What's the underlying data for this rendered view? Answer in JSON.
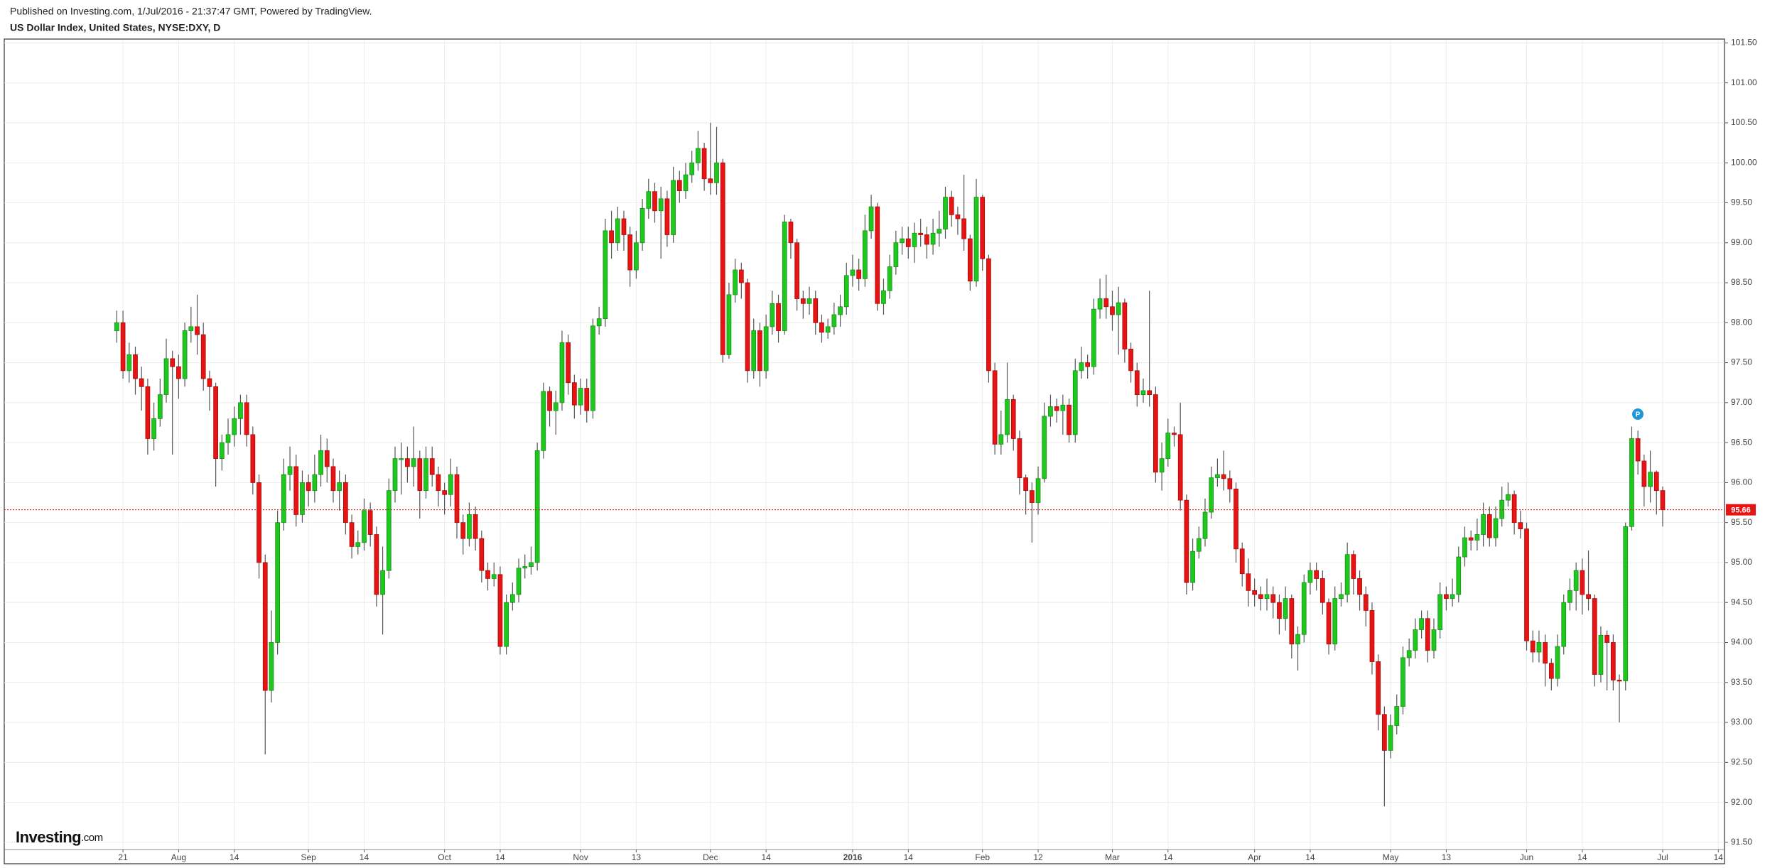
{
  "chart_data": {
    "type": "candlestick",
    "source": "Published on Investing.com, 1/Jul/2016 - 21:37:47 GMT, Powered by TradingView.",
    "title": "US Dollar Index, United States, NYSE:DXY, D",
    "logo": {
      "name": "Investing",
      "suffix": ".com"
    },
    "marker": "P",
    "up_color": "#1ec81e",
    "down_color": "#e81313",
    "last_price_color": "#e81313",
    "grid": true,
    "xlim": [
      -18.2,
      260
    ],
    "ylim": [
      91.41,
      101.53
    ],
    "yticks": [
      {
        "value": 91.5,
        "label": "91.50"
      },
      {
        "value": 92,
        "label": "92.00"
      },
      {
        "value": 92.5,
        "label": "92.50"
      },
      {
        "value": 93,
        "label": "93.00"
      },
      {
        "value": 93.5,
        "label": "93.50"
      },
      {
        "value": 94,
        "label": "94.00"
      },
      {
        "value": 94.5,
        "label": "94.50"
      },
      {
        "value": 95,
        "label": "95.00"
      },
      {
        "value": 95.5,
        "label": "95.50"
      },
      {
        "value": 96,
        "label": "96.00"
      },
      {
        "value": 96.5,
        "label": "96.50"
      },
      {
        "value": 97,
        "label": "97.00"
      },
      {
        "value": 97.5,
        "label": "97.50"
      },
      {
        "value": 98,
        "label": "98.00"
      },
      {
        "value": 98.5,
        "label": "98.50"
      },
      {
        "value": 99,
        "label": "99.00"
      },
      {
        "value": 99.5,
        "label": "99.50"
      },
      {
        "value": 100,
        "label": "100.00"
      },
      {
        "value": 100.5,
        "label": "100.50"
      },
      {
        "value": 101,
        "label": "101.00"
      },
      {
        "value": 101.5,
        "label": "101.50"
      }
    ],
    "xticks": [
      {
        "value": 1,
        "label": "21"
      },
      {
        "value": 10,
        "label": "Aug"
      },
      {
        "value": 19,
        "label": "14"
      },
      {
        "value": 31,
        "label": "Sep"
      },
      {
        "value": 40,
        "label": "14"
      },
      {
        "value": 53,
        "label": "Oct"
      },
      {
        "value": 62,
        "label": "14"
      },
      {
        "value": 75,
        "label": "Nov"
      },
      {
        "value": 84,
        "label": "13"
      },
      {
        "value": 96,
        "label": "Dec"
      },
      {
        "value": 105,
        "label": "14"
      },
      {
        "value": 119,
        "label": "2016"
      },
      {
        "value": 128,
        "label": "14"
      },
      {
        "value": 140,
        "label": "Feb"
      },
      {
        "value": 149,
        "label": "12"
      },
      {
        "value": 161,
        "label": "Mar"
      },
      {
        "value": 170,
        "label": "14"
      },
      {
        "value": 184,
        "label": "Apr"
      },
      {
        "value": 193,
        "label": "14"
      },
      {
        "value": 206,
        "label": "May"
      },
      {
        "value": 215,
        "label": "13"
      },
      {
        "value": 228,
        "label": "Jun"
      },
      {
        "value": 237,
        "label": "14"
      },
      {
        "value": 250,
        "label": "Jul"
      },
      {
        "value": 259,
        "label": "14"
      }
    ],
    "open": [
      97.9,
      98.0,
      97.4,
      97.6,
      97.3,
      97.2,
      96.55,
      96.8,
      97.1,
      97.55,
      97.45,
      97.3,
      97.9,
      97.95,
      97.85,
      97.3,
      97.2,
      96.3,
      96.5,
      96.6,
      96.8,
      97.0,
      96.6,
      96.0,
      95.0,
      93.4,
      94.0,
      95.5,
      96.1,
      96.2,
      95.6,
      96.0,
      95.9,
      96.1,
      96.4,
      96.2,
      95.9,
      96.0,
      95.5,
      95.2,
      95.25,
      95.65,
      95.35,
      94.6,
      94.9,
      95.9,
      96.3,
      96.3,
      96.2,
      96.3,
      95.9,
      96.3,
      96.1,
      95.9,
      95.85,
      96.1,
      95.5,
      95.3,
      95.6,
      95.3,
      94.9,
      94.8,
      94.85,
      93.95,
      94.5,
      94.6,
      94.93,
      94.95,
      95.0,
      96.4,
      97.14,
      96.9,
      97.0,
      97.75,
      97.25,
      96.97,
      97.18,
      96.9,
      97.96,
      98.05,
      99.15,
      99.0,
      99.3,
      99.1,
      98.66,
      99.0,
      99.43,
      99.64,
      99.4,
      99.55,
      99.1,
      99.78,
      99.65,
      99.85,
      100.0,
      100.18,
      99.8,
      99.75,
      100.0,
      97.6,
      98.35,
      98.66,
      98.5,
      97.4,
      97.9,
      97.4,
      97.95,
      98.24,
      97.9,
      99.26,
      99.0,
      98.3,
      98.24,
      98.3,
      98.0,
      97.88,
      97.95,
      98.1,
      98.2,
      98.59,
      98.66,
      98.55,
      99.15,
      99.45,
      98.24,
      98.4,
      98.7,
      99.0,
      99.05,
      98.95,
      99.12,
      99.1,
      98.98,
      99.12,
      99.17,
      99.57,
      99.35,
      99.3,
      99.05,
      98.52,
      99.57,
      98.8,
      97.4,
      96.48,
      96.6,
      97.04,
      96.55,
      96.06,
      95.9,
      95.75,
      96.05,
      96.83,
      96.95,
      96.9,
      96.97,
      96.6,
      97.4,
      97.5,
      97.45,
      98.17,
      98.3,
      98.2,
      98.1,
      98.25,
      97.67,
      97.4,
      97.1,
      97.15,
      97.1,
      96.13,
      96.3,
      96.62,
      96.6,
      95.78,
      94.75,
      95.14,
      95.3,
      95.63,
      96.06,
      96.1,
      96.05,
      95.92,
      95.17,
      94.86,
      94.65,
      94.6,
      94.55,
      94.6,
      94.5,
      94.3,
      94.55,
      93.98,
      94.1,
      94.75,
      94.9,
      94.8,
      94.5,
      93.98,
      94.55,
      94.6,
      95.1,
      94.8,
      94.6,
      94.4,
      93.76,
      93.1,
      92.65,
      92.96,
      93.2,
      93.81,
      93.9,
      94.16,
      94.3,
      93.9,
      94.16,
      94.6,
      94.55,
      94.6,
      95.07,
      95.31,
      95.28,
      95.35,
      95.6,
      95.31,
      95.55,
      95.78,
      95.85,
      95.5,
      95.42,
      94.02,
      93.88,
      94.0,
      93.74,
      93.55,
      93.95,
      94.5,
      94.65,
      94.9,
      94.6,
      94.55,
      93.6,
      94.09,
      94.0,
      93.53,
      93.52,
      95.45,
      96.55,
      96.27,
      95.95,
      96.13,
      95.9
    ],
    "high": [
      98.15,
      98.15,
      97.75,
      97.7,
      97.45,
      97.3,
      97.0,
      97.3,
      97.8,
      97.65,
      97.6,
      98.0,
      98.2,
      98.35,
      98.0,
      97.4,
      97.25,
      96.6,
      96.8,
      96.95,
      97.1,
      97.1,
      96.7,
      96.1,
      95.1,
      94.4,
      95.65,
      96.3,
      96.45,
      96.35,
      96.15,
      96.1,
      96.35,
      96.6,
      96.55,
      96.3,
      96.15,
      96.1,
      95.6,
      95.4,
      95.8,
      95.75,
      95.45,
      95.2,
      96.05,
      96.45,
      96.5,
      96.45,
      96.7,
      96.4,
      96.45,
      96.45,
      96.2,
      96.0,
      96.3,
      96.2,
      95.6,
      95.75,
      95.7,
      95.4,
      95.0,
      95.0,
      94.95,
      94.6,
      94.75,
      95.05,
      95.1,
      95.2,
      96.5,
      97.25,
      97.2,
      97.15,
      97.9,
      97.85,
      97.35,
      97.3,
      97.3,
      98.05,
      98.2,
      99.3,
      99.4,
      99.45,
      99.4,
      99.2,
      99.15,
      99.55,
      99.8,
      99.75,
      99.7,
      99.65,
      99.95,
      99.9,
      100.0,
      100.15,
      100.4,
      100.25,
      100.5,
      100.45,
      100.05,
      98.5,
      98.8,
      98.75,
      98.55,
      98.05,
      98.0,
      98.1,
      98.4,
      98.35,
      99.35,
      99.3,
      99.05,
      98.4,
      98.45,
      98.4,
      98.1,
      98.05,
      98.25,
      98.35,
      98.75,
      98.85,
      98.8,
      99.35,
      99.6,
      99.5,
      98.55,
      98.85,
      99.15,
      99.2,
      99.2,
      99.25,
      99.3,
      99.2,
      99.3,
      99.4,
      99.7,
      99.65,
      99.45,
      99.85,
      99.1,
      99.8,
      99.6,
      98.85,
      97.5,
      96.9,
      97.5,
      97.1,
      96.65,
      96.1,
      96.0,
      96.2,
      97.0,
      97.1,
      97.05,
      97.1,
      97.05,
      97.55,
      97.7,
      97.6,
      98.3,
      98.55,
      98.6,
      98.4,
      98.45,
      98.3,
      97.75,
      97.5,
      97.3,
      98.4,
      97.2,
      96.5,
      96.8,
      96.7,
      97.0,
      95.85,
      95.3,
      95.45,
      95.8,
      96.2,
      96.3,
      96.4,
      96.15,
      96.0,
      95.25,
      95.05,
      94.8,
      94.7,
      94.8,
      94.7,
      94.6,
      94.7,
      94.6,
      94.2,
      94.85,
      95.0,
      95.0,
      94.9,
      94.55,
      94.7,
      94.75,
      95.25,
      95.15,
      94.9,
      94.7,
      94.5,
      93.85,
      93.2,
      93.1,
      93.35,
      93.95,
      94.05,
      94.3,
      94.4,
      94.4,
      94.3,
      94.75,
      94.7,
      94.8,
      95.2,
      95.45,
      95.4,
      95.55,
      95.75,
      95.7,
      95.7,
      95.95,
      96.0,
      95.9,
      95.65,
      95.5,
      94.15,
      94.15,
      94.1,
      93.8,
      94.1,
      94.6,
      94.8,
      95.0,
      95.05,
      95.15,
      94.6,
      94.2,
      94.15,
      94.1,
      93.6,
      95.5,
      96.7,
      96.65,
      96.35,
      96.4,
      96.15,
      95.95
    ],
    "low": [
      97.75,
      97.3,
      97.25,
      97.1,
      96.9,
      96.35,
      96.4,
      96.7,
      97.0,
      96.35,
      97.05,
      97.2,
      97.75,
      97.6,
      97.15,
      96.9,
      95.95,
      96.15,
      96.35,
      96.45,
      96.6,
      96.45,
      95.85,
      94.8,
      92.6,
      93.25,
      93.85,
      95.4,
      95.9,
      95.45,
      95.5,
      95.7,
      95.75,
      95.95,
      96.0,
      95.75,
      95.65,
      95.35,
      95.05,
      95.1,
      95.15,
      95.2,
      94.45,
      94.1,
      94.8,
      95.75,
      95.85,
      96.0,
      95.95,
      95.55,
      95.8,
      95.95,
      95.7,
      95.6,
      95.7,
      95.3,
      95.1,
      95.2,
      95.15,
      94.75,
      94.65,
      94.7,
      93.85,
      93.85,
      94.4,
      94.5,
      94.8,
      94.85,
      94.9,
      96.3,
      96.7,
      96.6,
      96.9,
      97.1,
      96.8,
      96.85,
      96.75,
      96.8,
      97.85,
      97.95,
      98.8,
      98.9,
      98.9,
      98.45,
      98.55,
      98.9,
      99.3,
      99.25,
      98.8,
      98.95,
      99.0,
      99.5,
      99.55,
      99.75,
      99.9,
      99.65,
      99.6,
      99.6,
      97.5,
      97.55,
      98.25,
      98.3,
      97.25,
      97.3,
      97.2,
      97.3,
      97.85,
      97.75,
      97.85,
      98.8,
      98.15,
      98.05,
      98.1,
      97.85,
      97.75,
      97.8,
      97.85,
      97.95,
      98.1,
      98.45,
      98.4,
      98.45,
      99.05,
      98.15,
      98.1,
      98.3,
      98.6,
      98.85,
      98.8,
      98.75,
      98.95,
      98.8,
      98.85,
      98.95,
      99.05,
      99.2,
      99.1,
      98.9,
      98.4,
      98.45,
      98.65,
      97.25,
      96.35,
      96.35,
      96.5,
      96.4,
      95.85,
      95.6,
      95.25,
      95.6,
      96.0,
      96.7,
      96.75,
      96.6,
      96.5,
      96.5,
      97.3,
      97.3,
      97.35,
      98.05,
      98.05,
      97.9,
      97.6,
      97.5,
      97.25,
      96.95,
      97.0,
      96.95,
      96.0,
      95.9,
      96.2,
      96.45,
      95.65,
      94.6,
      94.65,
      95.05,
      95.2,
      95.55,
      95.95,
      95.9,
      95.75,
      95.0,
      94.7,
      94.45,
      94.45,
      94.4,
      94.4,
      94.3,
      94.1,
      94.15,
      93.8,
      93.65,
      94.0,
      94.6,
      94.65,
      94.35,
      93.85,
      93.9,
      94.45,
      94.5,
      94.6,
      94.4,
      94.2,
      93.6,
      92.9,
      91.95,
      92.55,
      92.85,
      93.1,
      93.7,
      93.8,
      94.05,
      93.75,
      93.8,
      94.05,
      94.4,
      94.45,
      94.5,
      94.95,
      95.15,
      95.15,
      95.2,
      95.2,
      95.2,
      95.45,
      95.7,
      95.35,
      95.3,
      93.9,
      93.75,
      93.75,
      93.45,
      93.4,
      93.45,
      93.85,
      94.4,
      94.4,
      94.35,
      94.4,
      93.45,
      93.5,
      93.4,
      93.4,
      93.0,
      93.4,
      95.4,
      96.1,
      95.7,
      95.75,
      95.6,
      95.45
    ],
    "close": [
      98.0,
      97.4,
      97.6,
      97.3,
      97.2,
      96.55,
      96.8,
      97.1,
      97.55,
      97.45,
      97.3,
      97.9,
      97.95,
      97.85,
      97.3,
      97.2,
      96.3,
      96.5,
      96.6,
      96.8,
      97.0,
      96.6,
      96.0,
      95.0,
      93.4,
      94.0,
      95.5,
      96.1,
      96.2,
      95.6,
      96.0,
      95.9,
      96.1,
      96.4,
      96.2,
      95.9,
      96.0,
      95.5,
      95.2,
      95.25,
      95.65,
      95.35,
      94.6,
      94.9,
      95.9,
      96.3,
      96.3,
      96.2,
      96.3,
      95.9,
      96.3,
      96.1,
      95.9,
      95.85,
      96.1,
      95.5,
      95.3,
      95.6,
      95.3,
      94.9,
      94.8,
      94.85,
      93.95,
      94.5,
      94.6,
      94.93,
      94.95,
      95.0,
      96.4,
      97.14,
      96.9,
      97.0,
      97.75,
      97.25,
      96.97,
      97.18,
      96.9,
      97.96,
      98.05,
      99.15,
      99.0,
      99.3,
      99.1,
      98.66,
      99.0,
      99.43,
      99.64,
      99.4,
      99.55,
      99.1,
      99.78,
      99.65,
      99.85,
      100.0,
      100.18,
      99.8,
      99.75,
      100.0,
      97.6,
      98.35,
      98.66,
      98.5,
      97.4,
      97.9,
      97.4,
      97.95,
      98.24,
      97.9,
      99.26,
      99.0,
      98.3,
      98.24,
      98.3,
      98.0,
      97.88,
      97.95,
      98.1,
      98.2,
      98.59,
      98.66,
      98.55,
      99.15,
      99.45,
      98.24,
      98.4,
      98.7,
      99.0,
      99.05,
      98.95,
      99.12,
      99.1,
      98.98,
      99.12,
      99.17,
      99.57,
      99.35,
      99.3,
      99.05,
      98.52,
      99.57,
      98.8,
      97.4,
      96.48,
      96.6,
      97.04,
      96.55,
      96.06,
      95.9,
      95.75,
      96.05,
      96.83,
      96.95,
      96.9,
      96.97,
      96.6,
      97.4,
      97.5,
      97.45,
      98.17,
      98.3,
      98.2,
      98.1,
      98.25,
      97.67,
      97.4,
      97.1,
      97.15,
      97.1,
      96.13,
      96.3,
      96.62,
      96.6,
      95.78,
      94.75,
      95.14,
      95.3,
      95.63,
      96.06,
      96.1,
      96.05,
      95.92,
      95.17,
      94.86,
      94.65,
      94.6,
      94.55,
      94.6,
      94.5,
      94.3,
      94.55,
      93.98,
      94.1,
      94.75,
      94.9,
      94.8,
      94.5,
      93.98,
      94.55,
      94.6,
      95.1,
      94.8,
      94.6,
      94.4,
      93.76,
      93.1,
      92.65,
      92.96,
      93.2,
      93.81,
      93.9,
      94.16,
      94.3,
      93.9,
      94.16,
      94.6,
      94.55,
      94.6,
      95.07,
      95.31,
      95.28,
      95.35,
      95.6,
      95.31,
      95.55,
      95.78,
      95.85,
      95.5,
      95.42,
      94.02,
      93.88,
      94.0,
      93.74,
      93.55,
      93.95,
      94.5,
      94.65,
      94.9,
      94.6,
      94.55,
      93.6,
      94.09,
      94.0,
      93.53,
      93.52,
      95.45,
      96.55,
      96.27,
      95.95,
      96.13,
      95.9,
      95.66
    ]
  }
}
